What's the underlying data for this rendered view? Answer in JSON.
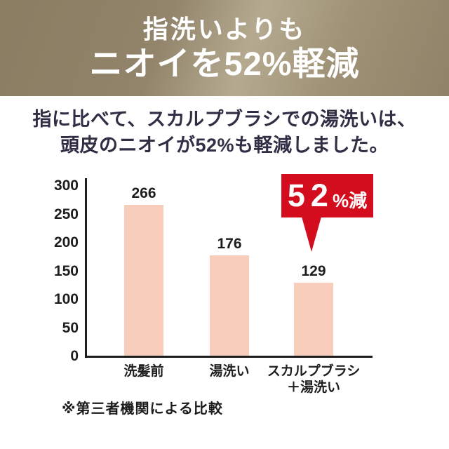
{
  "header": {
    "line1": "指洗いよりも",
    "line2": "ニオイを52%軽減"
  },
  "subtitle": {
    "line1": "指に比べて、スカルプブラシでの湯洗いは、",
    "line2": "頭皮のニオイが52%も軽減しました。"
  },
  "chart_data": {
    "type": "bar",
    "title": "",
    "categories": [
      [
        "洗髪前"
      ],
      [
        "湯洗い"
      ],
      [
        "スカルプブラシ",
        "＋湯洗い"
      ]
    ],
    "values": [
      266,
      176,
      129
    ],
    "ylim": [
      0,
      300
    ],
    "yticks": [
      300,
      250,
      200,
      150,
      100,
      50,
      0
    ],
    "grid": false,
    "legend": "none",
    "bar_color": "#f8cdbb",
    "axis_color": "#1d1d1d",
    "annotation": {
      "big": "52",
      "small": "%減",
      "color": "#d30d1d",
      "points_to_category": "スカルプブラシ＋湯洗い"
    },
    "footnote": "※第三者機関による比較"
  },
  "colors": {
    "banner_gold_dark": "#8b7d62",
    "banner_gold_light": "#b5aa90",
    "banner_text": "#ffffff",
    "subtitle_text": "#2f2e44",
    "bar_fill": "#f8cdbb",
    "badge_red": "#d30d1d",
    "chart_text": "#1d1d1d"
  }
}
